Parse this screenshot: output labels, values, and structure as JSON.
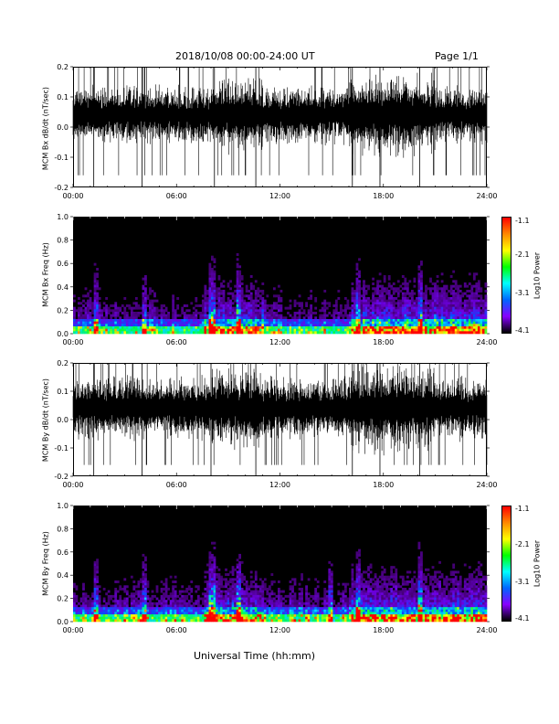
{
  "header": {
    "title": "2018/10/08  00:00-24:00 UT",
    "page": "Page 1/1"
  },
  "xaxis": {
    "title": "Universal Time (hh:mm)",
    "ticks": [
      "00:00",
      "06:00",
      "12:00",
      "18:00",
      "24:00"
    ]
  },
  "colorbar": {
    "label": "Log10 Power",
    "ticks": [
      "-1.1",
      "-2.1",
      "-3.1",
      "-4.1"
    ],
    "colors": [
      "#ff0000",
      "#ff8800",
      "#ffff00",
      "#00ff00",
      "#00ffff",
      "#0066ff",
      "#8800ff",
      "#000000"
    ]
  },
  "chart_data": [
    {
      "type": "line",
      "ylabel": "MCM Bx dB/dt (nT/sec)",
      "yticks": [
        "0.2",
        "0.1",
        "0.0",
        "-0.1",
        "-0.2"
      ],
      "xlim": [
        0,
        24
      ],
      "ylim": [
        -0.2,
        0.2
      ],
      "baseline": 0.04,
      "noise_amplitude": 0.06,
      "spikes_hours": [
        1.2,
        4.0,
        8.2,
        10.6,
        16.2,
        17.8,
        20.1
      ]
    },
    {
      "type": "heatmap",
      "ylabel": "MCM Bx Freq (Hz)",
      "yticks": [
        "1.0",
        "0.8",
        "0.6",
        "0.4",
        "0.2",
        "0.0"
      ],
      "xlim": [
        0,
        24
      ],
      "ylim": [
        0,
        1.0
      ],
      "bright_hours": [
        1.3,
        4.1,
        8.0,
        9.5,
        16.5,
        20.1
      ]
    },
    {
      "type": "line",
      "ylabel": "MCM By dB/dt (nT/sec)",
      "yticks": [
        "0.2",
        "0.1",
        "0.0",
        "-0.1",
        "-0.2"
      ],
      "xlim": [
        0,
        24
      ],
      "ylim": [
        -0.2,
        0.2
      ],
      "baseline": 0.04,
      "noise_amplitude": 0.07,
      "spikes_hours": [
        1.2,
        4.0,
        8.0,
        10.6,
        16.2,
        17.8,
        20.1
      ]
    },
    {
      "type": "heatmap",
      "ylabel": "MCM By Freq (Hz)",
      "yticks": [
        "1.0",
        "0.8",
        "0.6",
        "0.4",
        "0.2",
        "0.0"
      ],
      "xlim": [
        0,
        24
      ],
      "ylim": [
        0,
        1.0
      ],
      "bright_hours": [
        1.3,
        4.1,
        8.0,
        9.5,
        14.9,
        16.5,
        20.1
      ]
    }
  ]
}
